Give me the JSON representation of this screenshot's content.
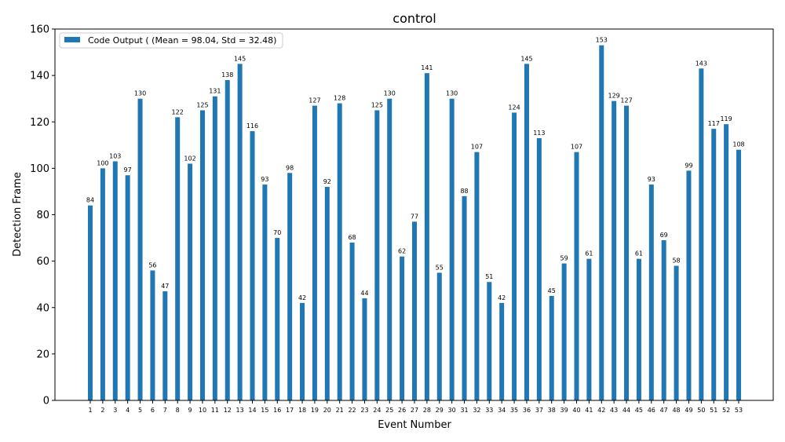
{
  "chart_data": {
    "type": "bar",
    "title": "control",
    "xlabel": "Event Number",
    "ylabel": "Detection Frame",
    "ylim": [
      0,
      160
    ],
    "yticks": [
      0,
      20,
      40,
      60,
      80,
      100,
      120,
      140,
      160
    ],
    "grid": false,
    "legend_position": "top-left",
    "bar_color": "#1f77b4",
    "categories": [
      "1",
      "2",
      "3",
      "4",
      "5",
      "6",
      "7",
      "8",
      "9",
      "10",
      "11",
      "12",
      "13",
      "14",
      "15",
      "16",
      "17",
      "18",
      "19",
      "20",
      "21",
      "22",
      "23",
      "24",
      "25",
      "26",
      "27",
      "28",
      "29",
      "30",
      "31",
      "32",
      "33",
      "34",
      "35",
      "36",
      "37",
      "38",
      "39",
      "40",
      "41",
      "42",
      "43",
      "44",
      "45",
      "46",
      "47",
      "48",
      "49",
      "50",
      "51",
      "52",
      "53"
    ],
    "series": [
      {
        "name": "Code Output ( (Mean = 98.04, Std = 32.48)",
        "values": [
          84,
          100,
          103,
          97,
          130,
          56,
          47,
          122,
          102,
          125,
          131,
          138,
          145,
          116,
          93,
          70,
          98,
          42,
          127,
          92,
          128,
          68,
          44,
          125,
          130,
          62,
          77,
          141,
          55,
          130,
          88,
          107,
          51,
          42,
          124,
          145,
          113,
          45,
          59,
          107,
          61,
          153,
          129,
          127,
          61,
          93,
          69,
          58,
          99,
          143,
          117,
          119,
          108
        ]
      }
    ]
  }
}
